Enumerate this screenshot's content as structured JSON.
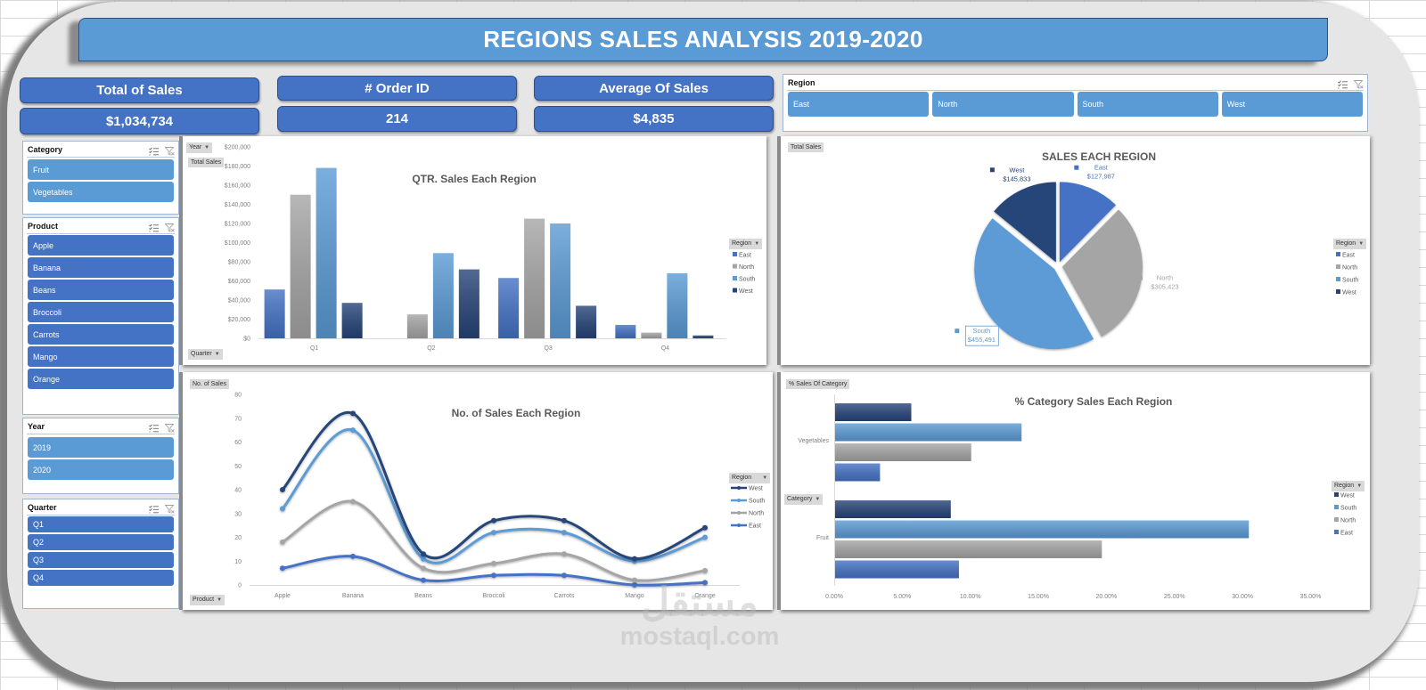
{
  "header": {
    "title": "REGIONS SALES ANALYSIS 2019-2020"
  },
  "kpis": {
    "total_sales": {
      "label": "Total of Sales",
      "value": "$1,034,734"
    },
    "order_id": {
      "label": "# Order ID",
      "value": "214"
    },
    "average_sales": {
      "label": "Average Of Sales",
      "value": "$4,835"
    }
  },
  "slicers": {
    "region": {
      "title": "Region",
      "items": [
        "East",
        "North",
        "South",
        "West"
      ]
    },
    "category": {
      "title": "Category",
      "items": [
        "Fruit",
        "Vegetables"
      ]
    },
    "product": {
      "title": "Product",
      "items": [
        "Apple",
        "Banana",
        "Beans",
        "Broccoli",
        "Carrots",
        "Mango",
        "Orange"
      ]
    },
    "year": {
      "title": "Year",
      "items": [
        "2019",
        "2020"
      ]
    },
    "quarter": {
      "title": "Quarter",
      "items": [
        "Q1",
        "Q2",
        "Q3",
        "Q4"
      ]
    }
  },
  "icons": {
    "multi_select": "multi-select-icon",
    "clear_filter": "clear-filter-icon",
    "dropdown": "dropdown-arrow-icon"
  },
  "colors": {
    "east": "#4472c4",
    "north": "#a5a5a5",
    "south": "#5b9bd5",
    "west": "#264478",
    "banner": "#5b9bd5",
    "kpi": "#4472c4"
  },
  "watermark": {
    "arabic": "مستقل",
    "latin": "mostaql.com"
  },
  "chart_data": [
    {
      "type": "bar",
      "title": "QTR. Sales Each Region",
      "xlabel": "Quarter",
      "ylabel": "Total Sales",
      "categories": [
        "Q1",
        "Q2",
        "Q3",
        "Q4"
      ],
      "series": [
        {
          "name": "East",
          "values": [
            51000,
            0,
            63000,
            14000
          ]
        },
        {
          "name": "North",
          "values": [
            150000,
            25000,
            125000,
            6000
          ]
        },
        {
          "name": "South",
          "values": [
            178000,
            89000,
            120000,
            68000
          ]
        },
        {
          "name": "West",
          "values": [
            37000,
            72000,
            34000,
            3000
          ]
        }
      ],
      "ylim": [
        0,
        200000
      ],
      "yticks": [
        "$0",
        "$20,000",
        "$40,000",
        "$60,000",
        "$80,000",
        "$100,000",
        "$120,000",
        "$140,000",
        "$160,000",
        "$180,000",
        "$200,000"
      ],
      "grid": false,
      "legend": {
        "position": "right",
        "field": "Region",
        "entries": [
          "East",
          "North",
          "South",
          "West"
        ]
      },
      "field_buttons": {
        "filter": "Year",
        "value": "Total Sales",
        "axis": "Quarter"
      }
    },
    {
      "type": "pie",
      "title": "SALES EACH REGION",
      "categories": [
        "East",
        "North",
        "South",
        "West"
      ],
      "values": [
        127987,
        305423,
        455491,
        145833
      ],
      "value_labels": [
        "$127,987",
        "$305,423",
        "$455,491",
        "$145,833"
      ],
      "highlighted_label": "South",
      "legend": {
        "position": "right",
        "field": "Region",
        "entries": [
          "East",
          "North",
          "South",
          "West"
        ]
      },
      "field_buttons": {
        "value": "Total Sales"
      }
    },
    {
      "type": "line",
      "title": "No. of Sales Each Region",
      "xlabel": "Product",
      "ylabel": "No. of Sales",
      "categories": [
        "Apple",
        "Banana",
        "Beans",
        "Broccoli",
        "Carrots",
        "Mango",
        "Orange"
      ],
      "series": [
        {
          "name": "West",
          "values": [
            40,
            72,
            13,
            27,
            27,
            11,
            24
          ]
        },
        {
          "name": "South",
          "values": [
            32,
            65,
            11,
            22,
            22,
            10,
            20
          ]
        },
        {
          "name": "North",
          "values": [
            18,
            35,
            7,
            9,
            13,
            2,
            6
          ]
        },
        {
          "name": "East",
          "values": [
            7,
            12,
            2,
            4,
            4,
            0,
            1
          ]
        }
      ],
      "ylim": [
        0,
        80
      ],
      "yticks": [
        "0",
        "10",
        "20",
        "30",
        "40",
        "50",
        "60",
        "70",
        "80"
      ],
      "grid": false,
      "legend": {
        "position": "right",
        "field": "Region",
        "entries": [
          "West",
          "South",
          "North",
          "East"
        ]
      },
      "field_buttons": {
        "value": "No. of Sales",
        "axis": "Product"
      }
    },
    {
      "type": "bar",
      "orientation": "horizontal",
      "title": "% Category Sales Each Region",
      "xlabel": "",
      "ylabel": "Category",
      "categories": [
        "Vegetables",
        "Fruit"
      ],
      "series": [
        {
          "name": "West",
          "values": [
            5.6,
            8.5
          ]
        },
        {
          "name": "South",
          "values": [
            13.7,
            30.4
          ]
        },
        {
          "name": "North",
          "values": [
            10.0,
            19.6
          ]
        },
        {
          "name": "East",
          "values": [
            3.3,
            9.1
          ]
        }
      ],
      "xlim": [
        0,
        35
      ],
      "xticks": [
        "0.00%",
        "5.00%",
        "10.00%",
        "15.00%",
        "20.00%",
        "25.00%",
        "30.00%",
        "35.00%"
      ],
      "grid": false,
      "legend": {
        "position": "right",
        "field": "Region",
        "entries": [
          "West",
          "South",
          "North",
          "East"
        ]
      },
      "field_buttons": {
        "value": "% Sales Of Category",
        "axis": "Category"
      }
    }
  ]
}
